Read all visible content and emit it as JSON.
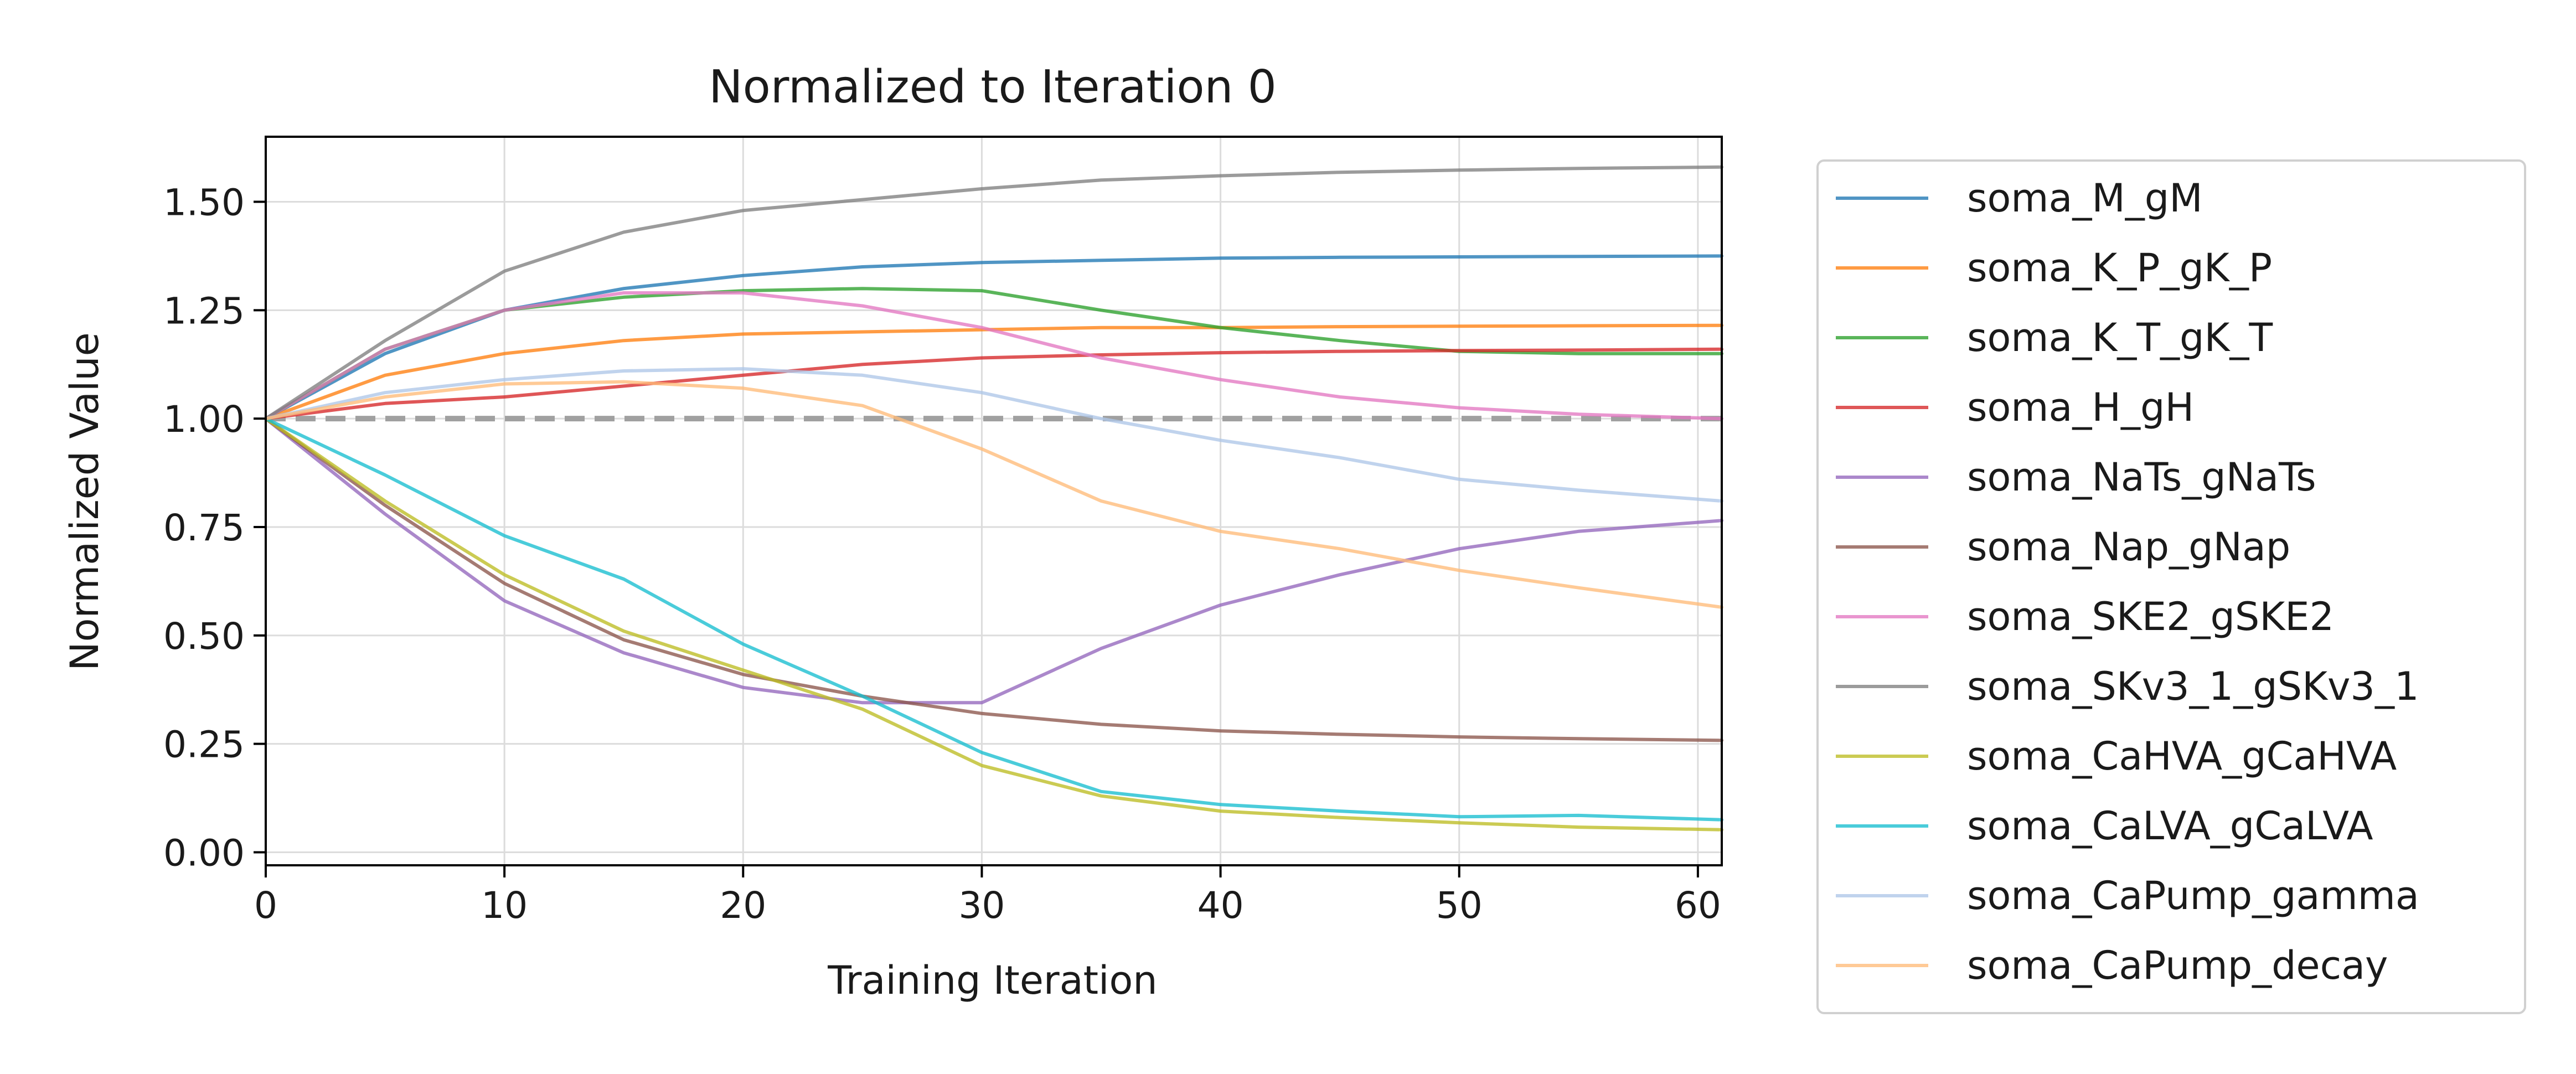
{
  "chart_data": {
    "type": "line",
    "title": "Normalized to Iteration 0",
    "xlabel": "Training Iteration",
    "ylabel": "Normalized Value",
    "xlim": [
      0,
      61
    ],
    "ylim": [
      -0.03,
      1.65
    ],
    "xticks": [
      "0",
      "10",
      "20",
      "30",
      "40",
      "50",
      "60"
    ],
    "yticks": [
      "0.00",
      "0.25",
      "0.50",
      "0.75",
      "1.00",
      "1.25",
      "1.50"
    ],
    "grid": true,
    "legend_position": "outside right",
    "reference_line": {
      "y": 1.0,
      "style": "dashed",
      "color": "#a0a0a0"
    },
    "x": [
      0,
      5,
      10,
      15,
      20,
      25,
      30,
      35,
      40,
      45,
      50,
      55,
      61
    ],
    "series": [
      {
        "name": "soma_M_gM",
        "color": "#1f77b4",
        "values": [
          1.0,
          1.15,
          1.25,
          1.3,
          1.33,
          1.35,
          1.36,
          1.365,
          1.37,
          1.372,
          1.373,
          1.374,
          1.375
        ]
      },
      {
        "name": "soma_K_P_gK_P",
        "color": "#ff7f0e",
        "values": [
          1.0,
          1.1,
          1.15,
          1.18,
          1.195,
          1.2,
          1.205,
          1.21,
          1.21,
          1.212,
          1.213,
          1.214,
          1.215
        ]
      },
      {
        "name": "soma_K_T_gK_T",
        "color": "#2ca02c",
        "values": [
          1.0,
          1.16,
          1.25,
          1.28,
          1.295,
          1.3,
          1.295,
          1.25,
          1.21,
          1.18,
          1.155,
          1.15,
          1.15
        ]
      },
      {
        "name": "soma_H_gH",
        "color": "#d62728",
        "values": [
          1.0,
          1.035,
          1.05,
          1.075,
          1.1,
          1.125,
          1.14,
          1.147,
          1.152,
          1.155,
          1.157,
          1.158,
          1.16
        ]
      },
      {
        "name": "soma_NaTs_gNaTs",
        "color": "#9467bd",
        "values": [
          1.0,
          0.78,
          0.58,
          0.46,
          0.38,
          0.345,
          0.345,
          0.47,
          0.57,
          0.64,
          0.7,
          0.74,
          0.765
        ]
      },
      {
        "name": "soma_Nap_gNap",
        "color": "#8c564b",
        "values": [
          1.0,
          0.8,
          0.62,
          0.49,
          0.41,
          0.36,
          0.32,
          0.295,
          0.28,
          0.272,
          0.266,
          0.262,
          0.258
        ]
      },
      {
        "name": "soma_SKE2_gSKE2",
        "color": "#e377c2",
        "values": [
          1.0,
          1.16,
          1.25,
          1.29,
          1.29,
          1.26,
          1.21,
          1.14,
          1.09,
          1.05,
          1.025,
          1.01,
          1.0
        ]
      },
      {
        "name": "soma_SKv3_1_gSKv3_1",
        "color": "#7f7f7f",
        "values": [
          1.0,
          1.18,
          1.34,
          1.43,
          1.48,
          1.505,
          1.53,
          1.55,
          1.56,
          1.568,
          1.573,
          1.577,
          1.58
        ]
      },
      {
        "name": "soma_CaHVA_gCaHVA",
        "color": "#bcbd22",
        "values": [
          1.0,
          0.81,
          0.64,
          0.51,
          0.42,
          0.33,
          0.2,
          0.13,
          0.095,
          0.08,
          0.068,
          0.058,
          0.052
        ]
      },
      {
        "name": "soma_CaLVA_gCaLVA",
        "color": "#17becf",
        "values": [
          1.0,
          0.87,
          0.73,
          0.63,
          0.48,
          0.36,
          0.23,
          0.14,
          0.11,
          0.095,
          0.082,
          0.085,
          0.075
        ]
      },
      {
        "name": "soma_CaPump_gamma",
        "color": "#aec7e8",
        "values": [
          1.0,
          1.06,
          1.09,
          1.11,
          1.115,
          1.1,
          1.06,
          1.0,
          0.95,
          0.91,
          0.86,
          0.835,
          0.81
        ]
      },
      {
        "name": "soma_CaPump_decay",
        "color": "#ffbb78",
        "values": [
          1.0,
          1.05,
          1.08,
          1.085,
          1.07,
          1.03,
          0.93,
          0.81,
          0.74,
          0.7,
          0.65,
          0.61,
          0.565
        ]
      }
    ]
  }
}
